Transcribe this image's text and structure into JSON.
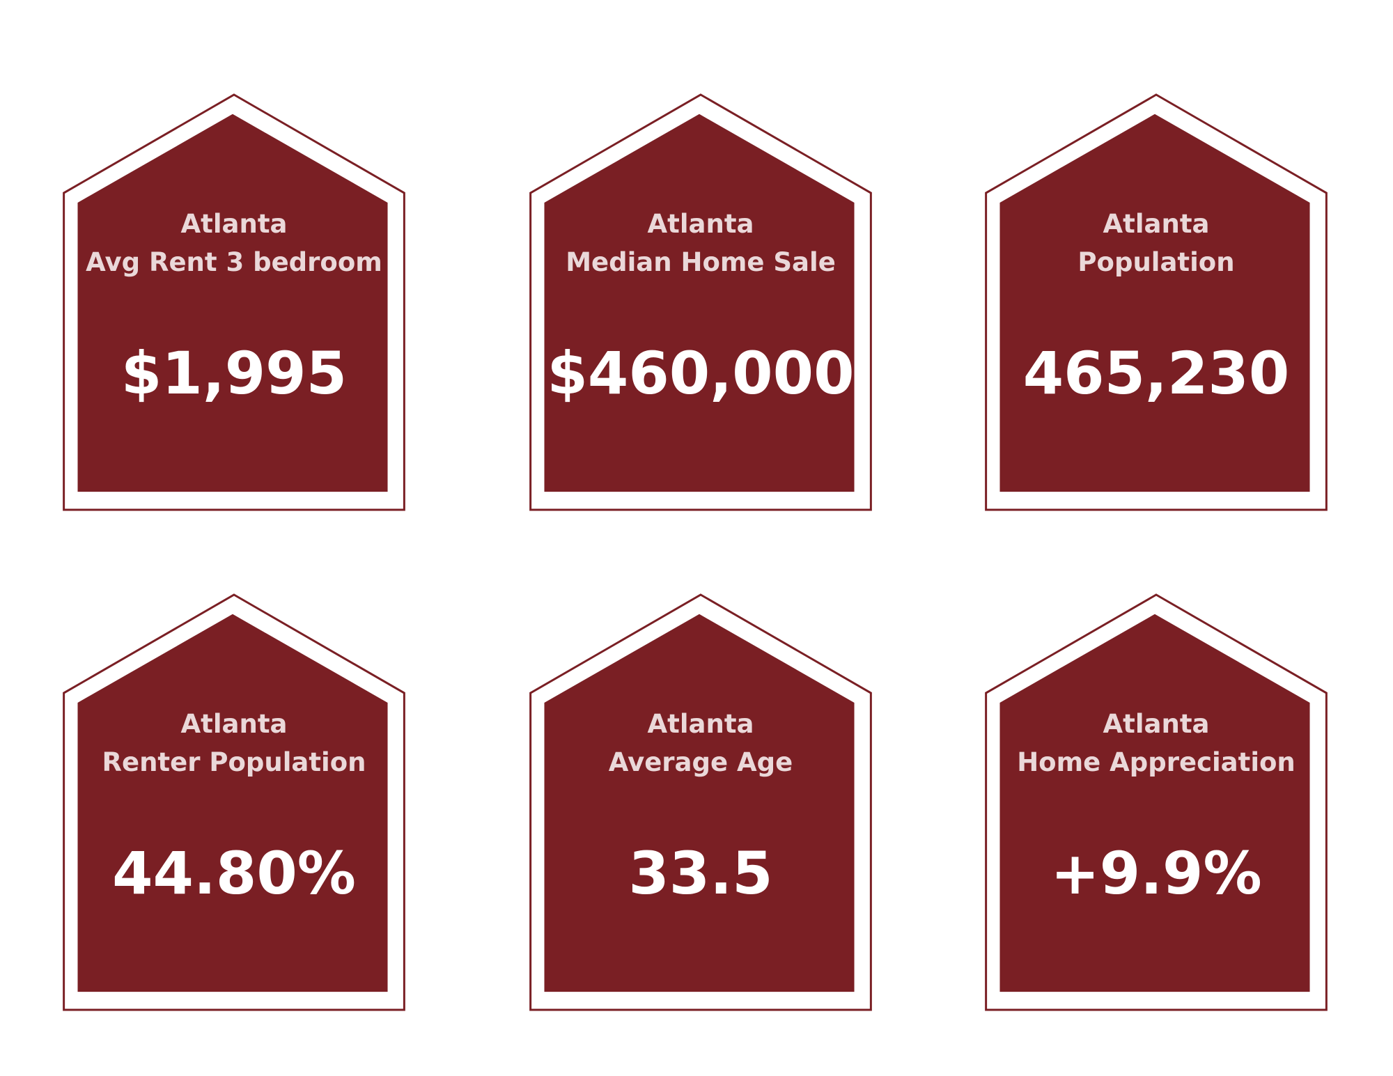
{
  "colors": {
    "card_fill": "#7a1f24",
    "card_outline": "#7a1f24",
    "title_text": "#ead8d9",
    "value_text": "#ffffff",
    "background": "#ffffff"
  },
  "cards": [
    {
      "city": "Atlanta",
      "label": "Avg Rent 3 bedroom",
      "value": "$1,995"
    },
    {
      "city": "Atlanta",
      "label": "Median Home Sale",
      "value": "$460,000"
    },
    {
      "city": "Atlanta",
      "label": "Population",
      "value": "465,230"
    },
    {
      "city": "Atlanta",
      "label": "Renter Population",
      "value": "44.80%"
    },
    {
      "city": "Atlanta",
      "label": "Average Age",
      "value": "33.5"
    },
    {
      "city": "Atlanta",
      "label": "Home Appreciation",
      "value": "+9.9%"
    }
  ]
}
